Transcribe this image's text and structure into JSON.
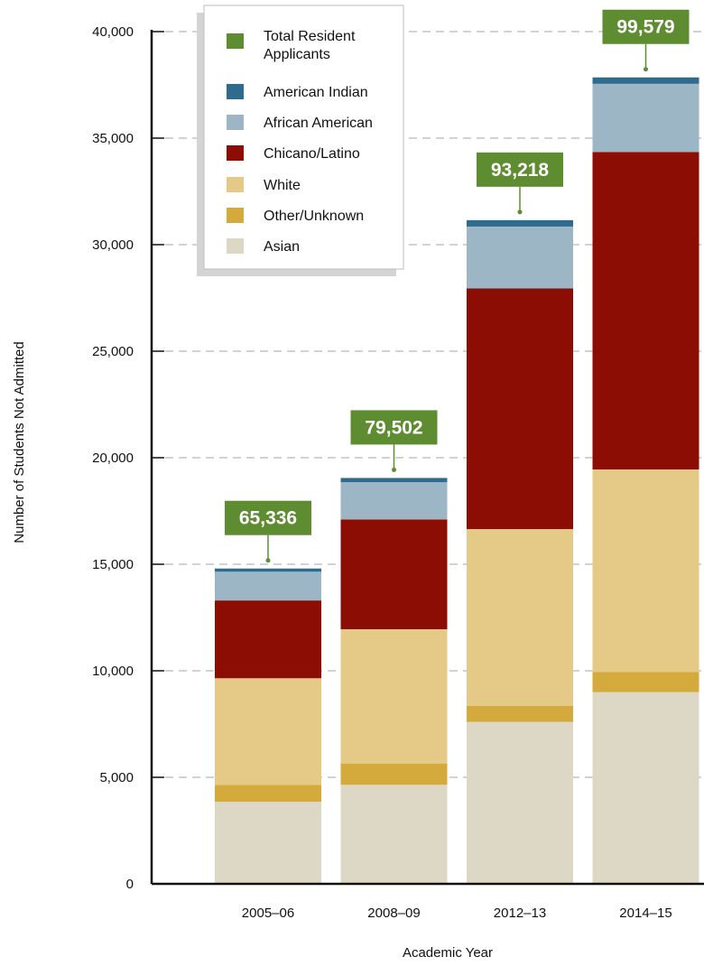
{
  "chart_data": {
    "type": "bar",
    "stacked": true,
    "categories": [
      "2005–06",
      "2008–09",
      "2012–13",
      "2014–15"
    ],
    "xlabel": "Academic Year",
    "ylabel": "Number of Students Not Admitted",
    "ylim": [
      0,
      40000
    ],
    "yticks": [
      {
        "value": 0,
        "label": "0"
      },
      {
        "value": 5000,
        "label": "5,000"
      },
      {
        "value": 10000,
        "label": "10,000"
      },
      {
        "value": 15000,
        "label": "15,000"
      },
      {
        "value": 20000,
        "label": "20,000"
      },
      {
        "value": 25000,
        "label": "25,000"
      },
      {
        "value": 30000,
        "label": "30,000"
      },
      {
        "value": 35000,
        "label": "35,000"
      },
      {
        "value": 40000,
        "label": "40,000"
      }
    ],
    "grid": true,
    "legend_position": "top-left",
    "series": [
      {
        "name": "Asian",
        "color": "#ddd8c6",
        "values": [
          3850,
          4650,
          7600,
          9000
        ]
      },
      {
        "name": "Other/Unknown",
        "color": "#d4aa3c",
        "values": [
          800,
          1000,
          750,
          950
        ]
      },
      {
        "name": "White",
        "color": "#e4ca86",
        "values": [
          5000,
          6300,
          8300,
          9500
        ]
      },
      {
        "name": "Chicano/Latino",
        "color": "#8b0d04",
        "values": [
          3650,
          5150,
          11300,
          14900
        ]
      },
      {
        "name": "African American",
        "color": "#9cb6c6",
        "values": [
          1350,
          1750,
          2900,
          3200
        ]
      },
      {
        "name": "American Indian",
        "color": "#2f6b8d",
        "values": [
          150,
          200,
          300,
          300
        ]
      }
    ],
    "totals": {
      "name": "Total Resident Applicants",
      "color": "#5e8c31",
      "values": [
        65336,
        79502,
        93218,
        99579
      ],
      "labels": [
        "65,336",
        "79,502",
        "93,218",
        "99,579"
      ]
    },
    "legend": [
      {
        "label": "Total Resident Applicants",
        "color": "#5e8c31"
      },
      {
        "label": "American Indian",
        "color": "#2f6b8d"
      },
      {
        "label": "African American",
        "color": "#9cb6c6"
      },
      {
        "label": "Chicano/Latino",
        "color": "#8b0d04"
      },
      {
        "label": "White",
        "color": "#e4ca86"
      },
      {
        "label": "Other/Unknown",
        "color": "#d4aa3c"
      },
      {
        "label": "Asian",
        "color": "#ddd8c6"
      }
    ]
  }
}
